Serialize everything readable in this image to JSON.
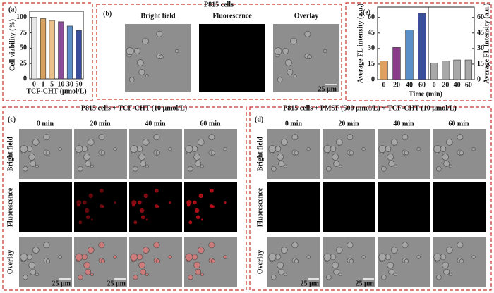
{
  "chart_data": [
    {
      "type": "bar",
      "panel_label": "(a)",
      "ylabel": "Cell viability (%)",
      "xlabel": "TCF-CHT (μmol/L)",
      "categories": [
        "0",
        "1",
        "5",
        "10",
        "30",
        "50"
      ],
      "values": [
        100,
        98,
        95,
        93,
        86,
        79
      ],
      "colors": [
        "#e8e8e8",
        "#d9a15e",
        "#e8c18d",
        "#8b4f99",
        "#5b8fc8",
        "#3a4f9c"
      ],
      "ylim": [
        0,
        110
      ],
      "yticks": [
        0,
        25,
        50,
        75,
        100
      ]
    },
    {
      "type": "bar",
      "panel_label": "(e)",
      "ylabel": "Average FL intensity (a.u.)",
      "xlabel": "Time (min)",
      "categories": [
        "0",
        "20",
        "40",
        "60"
      ],
      "values": [
        18,
        31,
        48,
        64
      ],
      "colors": [
        "#e0a060",
        "#8b3a8c",
        "#5b8fc8",
        "#3a4f9c"
      ],
      "ylim": [
        0,
        70
      ],
      "yticks": [
        0,
        15,
        30,
        45,
        60
      ]
    },
    {
      "type": "bar",
      "ylabel": "Average FL Intensity (a.u.)",
      "categories": [
        "0",
        "20",
        "40",
        "60"
      ],
      "values": [
        16,
        18,
        19,
        19
      ],
      "colors": [
        "#a8a8a8",
        "#a8a8a8",
        "#a8a8a8",
        "#a8a8a8"
      ],
      "ylim": [
        0,
        70
      ],
      "yticks": [
        0,
        15,
        30,
        45,
        60
      ],
      "y_axis_side": "right"
    }
  ],
  "panels": {
    "b": {
      "label": "(b)",
      "title": "P815 cells",
      "columns": [
        "Bright field",
        "Fluorescence",
        "Overlay"
      ],
      "scale_bar": "25 μm"
    },
    "c": {
      "label": "(c)",
      "title": "P815 cells + TCF-CHT (10 μmol/L)",
      "columns": [
        "0 min",
        "20 min",
        "40 min",
        "60 min"
      ],
      "rows": [
        "Bright field",
        "Fluorescence",
        "Overlay"
      ],
      "scale_bars": [
        "25 μm",
        "25 μm"
      ]
    },
    "d": {
      "label": "(d)",
      "title": "P815 cells + PMSF (500 μmol/L) + TCF-CHT (10 μmol/L)",
      "columns": [
        "0 min",
        "20 min",
        "40 min",
        "60 min"
      ],
      "rows": [
        "Bright field",
        "Fluorescence",
        "Overlay"
      ],
      "scale_bars": [
        "25 μm",
        "25 μm"
      ]
    }
  }
}
